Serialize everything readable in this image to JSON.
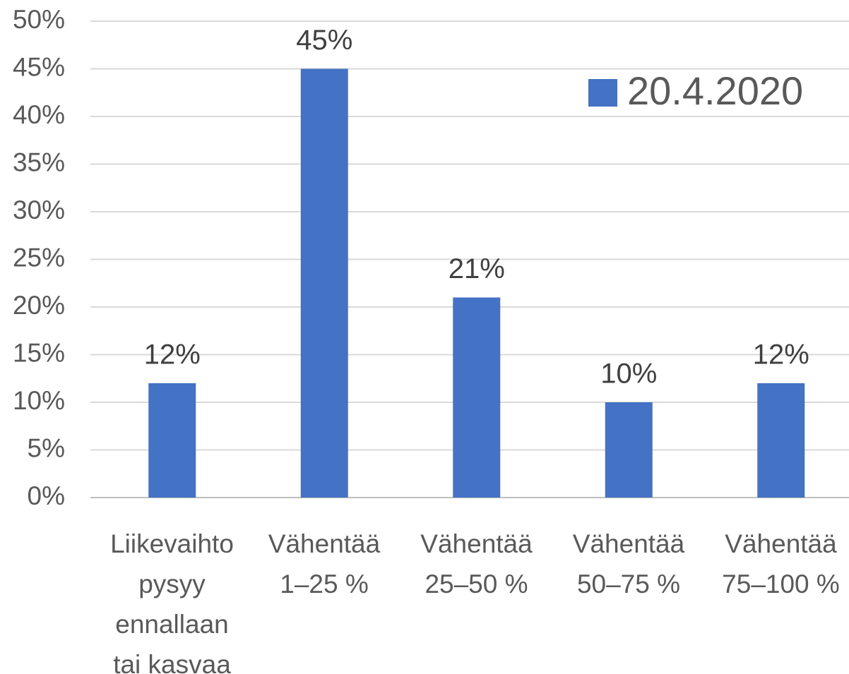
{
  "chart_data": {
    "type": "bar",
    "categories": [
      "Liikevaihto\npysyy\nennallaan\ntai kasvaa",
      "Vähentää\n1–25 %",
      "Vähentää\n25–50 %",
      "Vähentää\n50–75 %",
      "Vähentää\n75–100 %"
    ],
    "series": [
      {
        "name": "20.4.2020",
        "color": "#4472c4",
        "values": [
          12,
          45,
          21,
          10,
          12
        ],
        "value_labels": [
          "12%",
          "45%",
          "21%",
          "10%",
          "12%"
        ]
      }
    ],
    "ylim": [
      0,
      50
    ],
    "yticks": [
      {
        "value": 0,
        "label": "0%"
      },
      {
        "value": 5,
        "label": "5%"
      },
      {
        "value": 10,
        "label": "10%"
      },
      {
        "value": 15,
        "label": "15%"
      },
      {
        "value": 20,
        "label": "20%"
      },
      {
        "value": 25,
        "label": "25%"
      },
      {
        "value": 30,
        "label": "30%"
      },
      {
        "value": 35,
        "label": "35%"
      },
      {
        "value": 40,
        "label": "40%"
      },
      {
        "value": 45,
        "label": "45%"
      },
      {
        "value": 50,
        "label": "50%"
      }
    ],
    "grid": true,
    "legend": "top-right"
  }
}
